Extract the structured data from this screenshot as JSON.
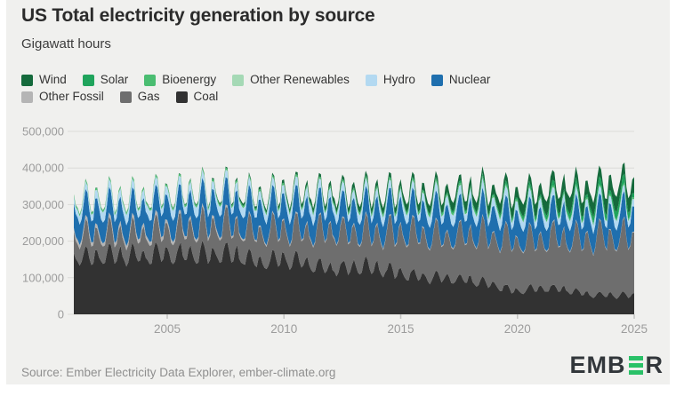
{
  "header": {
    "title": "US Total electricity generation by source",
    "subtitle": "Gigawatt hours"
  },
  "legend": {
    "rows": [
      [
        "Wind",
        "Solar",
        "Bioenergy",
        "Other Renewables",
        "Hydro",
        "Nuclear"
      ],
      [
        "Other Fossil",
        "Gas",
        "Coal"
      ]
    ]
  },
  "footer": {
    "source": "Source: Ember Electricity Data Explorer, ember-climate.org",
    "logo": {
      "prefix": "EMB",
      "suffix": "R",
      "green": "#2ac168",
      "dark": "#32373b"
    }
  },
  "colors": {
    "card_background": "#f0f0ee",
    "gridline": "#dbdbd8",
    "axis_text": "#9c9c9c",
    "title_text": "#2b2b2b"
  },
  "chart_data": {
    "type": "area",
    "variant": "stacked-monthly",
    "title": "US Total electricity generation by source",
    "ylabel": "Gigawatt hours",
    "xlabel": "",
    "x_range": [
      2001,
      2025
    ],
    "ylim": [
      0,
      500000
    ],
    "grid": true,
    "legend_position": "top",
    "y_ticks": [
      {
        "value": 0,
        "label": "0"
      },
      {
        "value": 100000,
        "label": "100,000"
      },
      {
        "value": 200000,
        "label": "200,000"
      },
      {
        "value": 300000,
        "label": "300,000"
      },
      {
        "value": 400000,
        "label": "400,000"
      },
      {
        "value": 500000,
        "label": "500,000"
      }
    ],
    "x_ticks": [
      {
        "value": 2005,
        "label": "2005"
      },
      {
        "value": 2010,
        "label": "2010"
      },
      {
        "value": 2015,
        "label": "2015"
      },
      {
        "value": 2020,
        "label": "2020"
      },
      {
        "value": 2025,
        "label": "2025"
      }
    ],
    "anchor_years": [
      2001,
      2002,
      2003,
      2004,
      2005,
      2006,
      2007,
      2008,
      2009,
      2010,
      2011,
      2012,
      2013,
      2014,
      2015,
      2016,
      2017,
      2018,
      2019,
      2020,
      2021,
      2022,
      2023,
      2024,
      2025
    ],
    "seasonal_profiles": {
      "coal": [
        1.1,
        0.97,
        0.88,
        0.82,
        0.87,
        1.03,
        1.16,
        1.14,
        0.98,
        0.86,
        0.9,
        1.07
      ],
      "gas": [
        1.08,
        0.95,
        0.85,
        0.8,
        0.88,
        1.08,
        1.28,
        1.25,
        1.02,
        0.85,
        0.86,
        1.06
      ],
      "nuclear": [
        1.06,
        0.99,
        0.93,
        0.87,
        0.9,
        1.02,
        1.08,
        1.07,
        0.95,
        0.88,
        0.93,
        1.05
      ],
      "hydro": [
        1.0,
        0.95,
        1.1,
        1.15,
        1.25,
        1.15,
        1.0,
        0.88,
        0.78,
        0.78,
        0.85,
        0.95
      ],
      "wind": [
        1.1,
        1.08,
        1.2,
        1.18,
        1.08,
        0.92,
        0.78,
        0.78,
        0.9,
        1.05,
        1.12,
        1.05
      ],
      "solar": [
        0.6,
        0.72,
        0.95,
        1.1,
        1.22,
        1.3,
        1.3,
        1.22,
        1.05,
        0.88,
        0.65,
        0.55
      ],
      "flat": [
        1,
        1,
        1,
        1,
        1,
        1,
        1,
        1,
        1,
        1,
        1,
        1
      ]
    },
    "series": [
      {
        "name": "Coal",
        "color": "#323232",
        "season": "coal",
        "noise": 0.045,
        "monthly_avg_gwh": [
          158700,
          161000,
          164500,
          164800,
          167800,
          165900,
          168000,
          165500,
          146300,
          153900,
          144400,
          126200,
          131800,
          131800,
          112700,
          103300,
          100500,
          95500,
          80500,
          64500,
          74800,
          69300,
          56300,
          53300,
          52000
        ]
      },
      {
        "name": "Gas",
        "color": "#6e6e6e",
        "season": "gas",
        "noise": 0.05,
        "monthly_avg_gwh": [
          53300,
          57600,
          54200,
          59200,
          63400,
          68000,
          74800,
          73600,
          76800,
          82300,
          84400,
          102100,
          93700,
          93900,
          111300,
          114800,
          108000,
          122300,
          131800,
          134800,
          131600,
          140800,
          150200,
          155400,
          158000
        ]
      },
      {
        "name": "Other Fossil",
        "color": "#b5b5b5",
        "season": "flat",
        "noise": 0.15,
        "monthly_avg_gwh": [
          11300,
          10500,
          11000,
          10800,
          10800,
          7500,
          8000,
          5000,
          4500,
          4200,
          3800,
          3200,
          3400,
          3600,
          3300,
          3000,
          2600,
          2800,
          2400,
          2300,
          2400,
          2500,
          2200,
          2100,
          2100
        ]
      },
      {
        "name": "Nuclear",
        "color": "#1f6fae",
        "season": "nuclear",
        "noise": 0.035,
        "monthly_avg_gwh": [
          64100,
          65000,
          63600,
          65700,
          65200,
          65600,
          67300,
          67100,
          66500,
          67300,
          65700,
          63900,
          65800,
          66500,
          66400,
          66900,
          67000,
          67300,
          67300,
          65800,
          64900,
          64300,
          64800,
          65200,
          65400
        ]
      },
      {
        "name": "Hydro",
        "color": "#b3d9f1",
        "season": "hydro",
        "noise": 0.07,
        "monthly_avg_gwh": [
          18100,
          22000,
          23000,
          22500,
          22500,
          24100,
          20700,
          21300,
          22800,
          21700,
          26600,
          23100,
          22400,
          21600,
          20800,
          22300,
          25000,
          24300,
          23900,
          24300,
          21500,
          21800,
          20100,
          20300,
          20500
        ]
      },
      {
        "name": "Other Renewables",
        "color": "#a5d9b5",
        "season": "flat",
        "noise": 0.02,
        "monthly_avg_gwh": [
          1200,
          1200,
          1250,
          1250,
          1250,
          1250,
          1250,
          1250,
          1250,
          1300,
          1300,
          1300,
          1350,
          1350,
          1350,
          1350,
          1350,
          1350,
          1400,
          1400,
          1400,
          1400,
          1400,
          1400,
          1400
        ]
      },
      {
        "name": "Bioenergy",
        "color": "#4abd71",
        "season": "flat",
        "noise": 0.02,
        "monthly_avg_gwh": [
          4900,
          5200,
          5300,
          5300,
          5300,
          5400,
          5400,
          5400,
          5400,
          5600,
          5600,
          5700,
          5800,
          5900,
          5800,
          5700,
          5600,
          5500,
          5200,
          4900,
          4800,
          4700,
          4500,
          4400,
          4400
        ]
      },
      {
        "name": "Solar",
        "color": "#1fa45c",
        "season": "solar",
        "noise": 0.04,
        "monthly_avg_gwh": [
          40,
          45,
          45,
          50,
          50,
          55,
          60,
          70,
          90,
          100,
          150,
          360,
          750,
          1450,
          2100,
          3100,
          4400,
          5300,
          6000,
          7600,
          9600,
          12200,
          13800,
          18200,
          19500
        ]
      },
      {
        "name": "Wind",
        "color": "#156a3c",
        "season": "wind",
        "noise": 0.09,
        "monthly_avg_gwh": [
          580,
          870,
          930,
          1180,
          1500,
          2200,
          2900,
          4600,
          6200,
          7900,
          10000,
          11800,
          14000,
          15200,
          15900,
          18900,
          21200,
          22900,
          24600,
          28200,
          31700,
          36200,
          35400,
          37300,
          38000
        ]
      }
    ]
  }
}
